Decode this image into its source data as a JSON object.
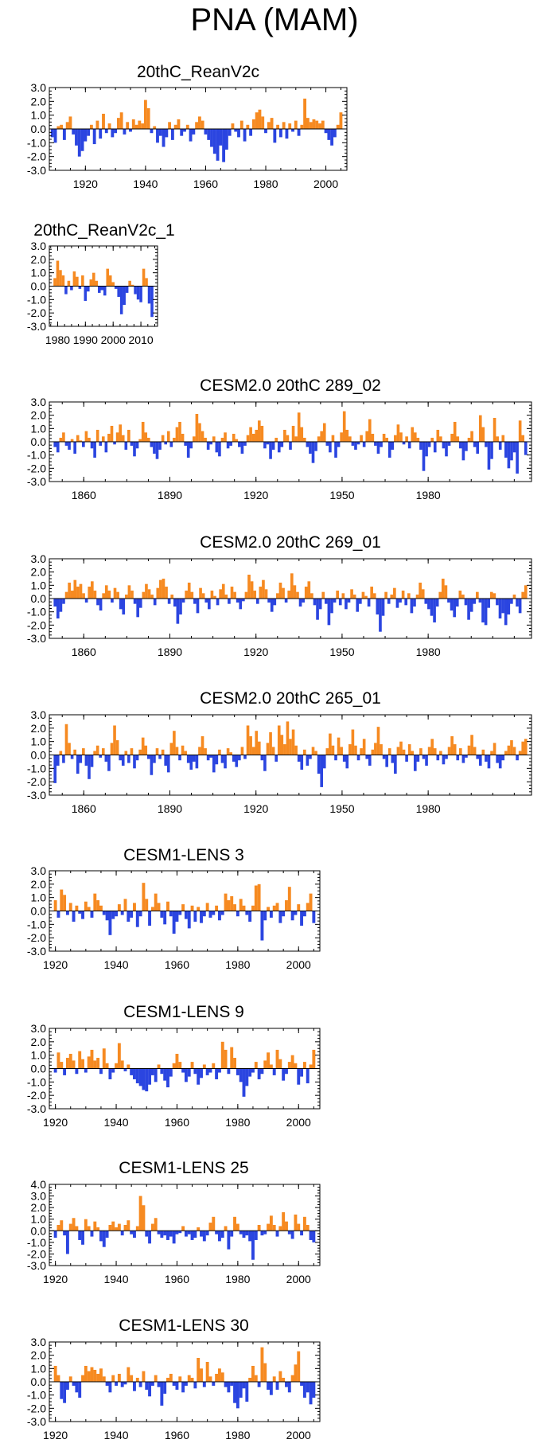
{
  "page": {
    "title": "PNA (MAM)"
  },
  "colors": {
    "positive": "#f68a21",
    "negative": "#2b45e0",
    "axis": "#000000"
  },
  "chart_data": [
    {
      "type": "area",
      "title": "20thC_ReanV2c",
      "x_start": 1909,
      "x_end": 2005,
      "xlim": [
        1908,
        2007
      ],
      "ylim": [
        -3,
        3
      ],
      "yticks": [
        "3.0",
        "2.0",
        "1.0",
        "0.0",
        "-1.0",
        "-2.0",
        "-3.0"
      ],
      "yticks_values": [
        3,
        2,
        1,
        0,
        -1,
        -2,
        -3
      ],
      "xticks": [
        "1920",
        "1940",
        "1960",
        "1980",
        "2000"
      ],
      "xticks_values": [
        1920,
        1940,
        1960,
        1980,
        2000
      ],
      "values": [
        -0.6,
        -1.0,
        0.2,
        0.3,
        -0.8,
        0.5,
        0.9,
        -0.4,
        -1.2,
        -2.0,
        -1.6,
        -0.9,
        -0.5,
        0.3,
        -1.1,
        0.6,
        -0.7,
        1.1,
        -0.3,
        0.4,
        -0.6,
        -0.3,
        0.8,
        1.2,
        -0.4,
        0.5,
        -0.2,
        0.7,
        0.3,
        0.6,
        0.4,
        2.1,
        1.5,
        -0.3,
        0.2,
        -1.0,
        -0.5,
        -1.3,
        -0.6,
        0.5,
        -0.8,
        0.3,
        0.7,
        -0.5,
        -0.2,
        0.3,
        -0.9,
        -0.4,
        0.5,
        0.9,
        0.6,
        -0.4,
        -0.8,
        -1.3,
        -1.8,
        -2.3,
        -1.2,
        -2.4,
        -1.5,
        -0.5,
        0.4,
        -0.2,
        -0.6,
        0.6,
        -0.9,
        0.3,
        -0.5,
        0.7,
        1.2,
        1.4,
        0.9,
        -0.3,
        0.5,
        0.8,
        -1.0,
        0.3,
        -0.6,
        0.5,
        -0.7,
        0.4,
        -0.2,
        0.6,
        -0.5,
        0.3,
        2.2,
        0.8,
        0.5,
        0.7,
        0.6,
        0.4,
        0.6,
        -0.3,
        -0.8,
        -1.2,
        -0.6,
        0.3,
        1.2
      ]
    },
    {
      "type": "area",
      "title": "20thC_ReanV2c_1",
      "x_start": 1979,
      "x_end": 2014,
      "xlim": [
        1977,
        2016
      ],
      "ylim": [
        -3,
        3
      ],
      "yticks": [
        "3.0",
        "2.0",
        "1.0",
        "0.0",
        "-1.0",
        "-2.0",
        "-3.0"
      ],
      "yticks_values": [
        3,
        2,
        1,
        0,
        -1,
        -2,
        -3
      ],
      "xticks": [
        "1980",
        "1990",
        "2000",
        "2010"
      ],
      "xticks_values": [
        1980,
        1990,
        2000,
        2010
      ],
      "values": [
        0.6,
        1.9,
        1.2,
        0.8,
        -0.6,
        0.4,
        -0.3,
        1.1,
        0.7,
        -0.2,
        0.8,
        -1.1,
        -0.4,
        0.5,
        1.0,
        0.4,
        -0.5,
        -0.3,
        -0.7,
        1.3,
        0.8,
        0.3,
        -0.2,
        -0.8,
        -2.1,
        -1.4,
        -0.5,
        0.4,
        0.1,
        -0.6,
        -1.0,
        -1.2,
        1.3,
        0.6,
        -1.3,
        -2.3
      ]
    },
    {
      "type": "area",
      "title": "CESM2.0 20thC 289_02",
      "x_start": 1850,
      "x_end": 2014,
      "xlim": [
        1848,
        2016
      ],
      "ylim": [
        -3,
        3
      ],
      "yticks": [
        "3.0",
        "2.0",
        "1.0",
        "0.0",
        "-1.0",
        "-2.0",
        "-3.0"
      ],
      "yticks_values": [
        3,
        2,
        1,
        0,
        -1,
        -2,
        -3
      ],
      "xticks": [
        "1860",
        "1890",
        "1920",
        "1950",
        "1980"
      ],
      "xticks_values": [
        1860,
        1890,
        1920,
        1950,
        1980
      ],
      "values": [
        -0.4,
        -0.8,
        0.3,
        0.7,
        -0.3,
        -0.6,
        0.2,
        -0.9,
        0.5,
        0.1,
        -0.4,
        0.8,
        0.3,
        -0.5,
        -1.2,
        0.9,
        -0.3,
        0.4,
        -0.8,
        0.6,
        1.2,
        -0.2,
        0.7,
        1.3,
        0.5,
        -0.6,
        0.9,
        -0.3,
        -1.1,
        -0.5,
        0.2,
        1.5,
        0.7,
        0.3,
        -0.4,
        -0.9,
        -1.3,
        -0.6,
        0.5,
        -0.2,
        0.8,
        -0.4,
        0.3,
        1.1,
        1.5,
        0.6,
        -0.3,
        -1.2,
        -0.5,
        0.4,
        2.1,
        1.4,
        0.8,
        0.3,
        -0.6,
        -0.2,
        0.4,
        -0.8,
        -1.1,
        0.3,
        0.7,
        -0.5,
        -0.3,
        0.6,
        0.2,
        -0.4,
        -0.9,
        -0.3,
        0.5,
        1.1,
        0.6,
        0.9,
        1.6,
        1.2,
        -0.5,
        -0.2,
        -1.3,
        -0.6,
        0.3,
        -0.8,
        -0.4,
        0.9,
        0.5,
        -0.6,
        1.2,
        0.4,
        2.2,
        1.1,
        0.3,
        -0.4,
        -0.9,
        -1.6,
        -0.7,
        0.4,
        0.8,
        1.4,
        -0.3,
        -0.8,
        0.5,
        -1.2,
        -0.4,
        0.7,
        2.3,
        0.9,
        0.4,
        -0.3,
        -0.6,
        -0.2,
        0.5,
        -0.4,
        0.8,
        1.7,
        0.6,
        -0.3,
        -0.9,
        -0.4,
        0.6,
        0.3,
        -1.2,
        -0.6,
        0.5,
        1.3,
        0.7,
        -0.2,
        0.4,
        -0.5,
        1.1,
        0.7,
        0.3,
        -0.6,
        -2.2,
        -1.1,
        -0.4,
        0.3,
        -0.8,
        0.9,
        0.4,
        -0.5,
        -1.1,
        -0.3,
        0.6,
        1.5,
        0.4,
        -0.5,
        -1.4,
        -0.7,
        0.3,
        0.8,
        -0.4,
        -0.9,
        2.0,
        1.1,
        -0.4,
        -2.1,
        -1.3,
        1.8,
        0.4,
        -0.6,
        0.5,
        -1.2,
        -2.0,
        -1.4,
        -0.8,
        -2.4,
        1.6,
        0.5,
        -1.0
      ]
    },
    {
      "type": "area",
      "title": "CESM2.0 20thC 269_01",
      "x_start": 1850,
      "x_end": 2014,
      "xlim": [
        1848,
        2016
      ],
      "ylim": [
        -3,
        3
      ],
      "yticks": [
        "3.0",
        "2.0",
        "1.0",
        "0.0",
        "-1.0",
        "-2.0",
        "-3.0"
      ],
      "yticks_values": [
        3,
        2,
        1,
        0,
        -1,
        -2,
        -3
      ],
      "xticks": [
        "1860",
        "1890",
        "1920",
        "1950",
        "1980"
      ],
      "xticks_values": [
        1860,
        1890,
        1920,
        1950,
        1980
      ],
      "values": [
        -0.6,
        -1.5,
        -1.0,
        -0.4,
        0.5,
        1.2,
        0.6,
        1.4,
        0.9,
        1.1,
        0.4,
        -0.3,
        0.9,
        1.3,
        0.6,
        -0.5,
        -0.9,
        0.4,
        1.0,
        0.6,
        -0.3,
        0.8,
        0.5,
        -0.8,
        -1.2,
        0.3,
        1.0,
        0.6,
        -0.4,
        -1.4,
        -0.7,
        0.5,
        1.1,
        0.7,
        0.3,
        -0.5,
        0.8,
        1.4,
        1.5,
        0.9,
        -0.4,
        0.3,
        -0.6,
        -1.9,
        -1.2,
        -0.3,
        0.6,
        1.2,
        0.5,
        -0.4,
        -1.1,
        0.8,
        0.4,
        -0.3,
        -0.8,
        0.6,
        0.2,
        -0.5,
        0.7,
        1.1,
        0.3,
        -0.4,
        0.9,
        0.5,
        -0.3,
        -0.8,
        -0.2,
        0.5,
        1.8,
        1.3,
        0.6,
        -0.4,
        0.9,
        1.4,
        0.7,
        -0.3,
        -1.0,
        -0.5,
        0.4,
        1.2,
        0.8,
        -0.3,
        0.6,
        1.9,
        1.0,
        0.5,
        -0.6,
        -0.3,
        0.9,
        1.3,
        0.4,
        -0.5,
        -1.6,
        -0.8,
        0.5,
        -0.4,
        -2.0,
        -1.1,
        -0.3,
        0.6,
        -0.5,
        0.4,
        -0.8,
        -0.3,
        0.7,
        0.3,
        -1.0,
        -0.4,
        0.5,
        0.2,
        -0.6,
        0.9,
        0.4,
        -1.2,
        -2.5,
        -1.3,
        0.5,
        -0.4,
        0.3,
        0.8,
        -0.7,
        -0.3,
        0.6,
        -0.5,
        0.4,
        -1.1,
        -0.6,
        0.3,
        1.2,
        0.7,
        -0.4,
        -0.8,
        -1.3,
        -1.8,
        -0.6,
        0.5,
        1.5,
        1.0,
        -0.3,
        -0.9,
        -1.4,
        -0.6,
        0.6,
        0.3,
        -0.5,
        -1.6,
        -1.0,
        -0.4,
        0.5,
        -0.3,
        -1.8,
        -2.0,
        -0.7,
        0.5,
        0.4,
        -0.5,
        -1.5,
        -1.1,
        -2.0,
        -1.2,
        -0.4,
        0.3,
        -0.6,
        -1.1,
        0.5,
        1.0
      ]
    },
    {
      "type": "area",
      "title": "CESM2.0 20thC 265_01",
      "x_start": 1850,
      "x_end": 2014,
      "xlim": [
        1848,
        2016
      ],
      "ylim": [
        -3,
        3
      ],
      "yticks": [
        "3.0",
        "2.0",
        "1.0",
        "0.0",
        "-1.0",
        "-2.0",
        "-3.0"
      ],
      "yticks_values": [
        3,
        2,
        1,
        0,
        -1,
        -2,
        -3
      ],
      "xticks": [
        "1860",
        "1890",
        "1920",
        "1950",
        "1980"
      ],
      "xticks_values": [
        1860,
        1890,
        1920,
        1950,
        1980
      ],
      "values": [
        -2.1,
        -0.8,
        0.3,
        -0.6,
        2.3,
        0.9,
        -0.3,
        0.4,
        -1.4,
        -0.6,
        0.5,
        -0.8,
        -1.8,
        -0.9,
        0.3,
        0.7,
        -0.2,
        0.5,
        -0.5,
        -1.2,
        0.9,
        2.2,
        1.1,
        -0.4,
        -0.8,
        0.3,
        -0.6,
        0.5,
        -1.0,
        -0.4,
        0.4,
        1.3,
        0.7,
        -0.3,
        -1.5,
        -0.6,
        0.5,
        -0.3,
        0.4,
        -0.8,
        -1.3,
        0.9,
        1.8,
        0.6,
        -0.4,
        0.7,
        0.3,
        -0.6,
        -1.1,
        -0.5,
        -1.0,
        0.6,
        1.4,
        0.5,
        -0.4,
        -0.2,
        -1.3,
        -0.7,
        0.4,
        -0.6,
        -1.0,
        0.5,
        0.2,
        -0.5,
        -0.9,
        -0.4,
        0.6,
        -0.3,
        2.2,
        1.4,
        0.6,
        1.8,
        1.0,
        -0.4,
        -1.2,
        0.9,
        1.7,
        0.6,
        -0.5,
        2.2,
        1.5,
        0.8,
        2.5,
        1.2,
        1.9,
        0.7,
        -0.5,
        -1.1,
        0.4,
        -0.8,
        -0.3,
        0.6,
        0.3,
        -1.4,
        -2.4,
        -1.0,
        0.5,
        1.6,
        0.7,
        -0.4,
        1.3,
        0.6,
        -0.5,
        -1.0,
        0.8,
        1.9,
        0.7,
        -0.4,
        0.5,
        1.2,
        -0.3,
        -0.8,
        0.4,
        0.9,
        2.1,
        0.8,
        -0.3,
        -0.9,
        0.5,
        -0.6,
        -1.4,
        0.6,
        1.0,
        0.4,
        -0.5,
        0.8,
        0.3,
        -1.2,
        -0.5,
        0.5,
        -0.3,
        -0.8,
        0.6,
        1.2,
        0.5,
        -0.4,
        0.3,
        -0.7,
        -0.3,
        0.6,
        1.4,
        0.8,
        -0.4,
        0.5,
        -0.6,
        -0.2,
        0.7,
        1.5,
        0.6,
        -0.3,
        -0.8,
        0.4,
        -0.5,
        -1.0,
        0.3,
        0.9,
        -0.6,
        -1.0,
        -0.4,
        0.3,
        0.7,
        1.1,
        0.6,
        -0.4,
        0.3,
        1.0,
        1.2
      ]
    },
    {
      "type": "area",
      "title": "CESM1-LENS 3",
      "x_start": 1920,
      "x_end": 2005,
      "xlim": [
        1918,
        2007
      ],
      "ylim": [
        -3,
        3
      ],
      "yticks": [
        "3.0",
        "2.0",
        "1.0",
        "0.0",
        "-1.0",
        "-2.0",
        "-3.0"
      ],
      "yticks_values": [
        3,
        2,
        1,
        0,
        -1,
        -2,
        -3
      ],
      "xticks": [
        "1920",
        "1940",
        "1960",
        "1980",
        "2000"
      ],
      "xticks_values": [
        1920,
        1940,
        1960,
        1980,
        2000
      ],
      "values": [
        0.8,
        -0.5,
        1.6,
        1.2,
        -0.3,
        0.6,
        -0.8,
        0.4,
        -0.2,
        -0.6,
        0.7,
        0.3,
        -0.5,
        1.3,
        0.8,
        0.4,
        -0.3,
        -0.7,
        -1.8,
        -0.6,
        -0.4,
        0.5,
        -0.3,
        0.9,
        -0.8,
        -0.5,
        0.6,
        -1.2,
        -0.4,
        2.1,
        0.9,
        -1.1,
        0.3,
        1.3,
        0.6,
        -0.5,
        -1.0,
        0.7,
        -0.4,
        -1.7,
        -0.8,
        -0.3,
        0.5,
        -0.6,
        -1.3,
        0.4,
        -0.8,
        0.3,
        -0.9,
        -0.4,
        0.6,
        -0.5,
        -0.3,
        0.4,
        -0.7,
        -0.3,
        1.3,
        0.8,
        1.1,
        0.5,
        -0.4,
        0.9,
        0.4,
        -0.3,
        -0.8,
        0.4,
        1.9,
        2.0,
        -2.2,
        -0.7,
        0.3,
        -0.5,
        0.4,
        0.6,
        -0.9,
        -0.4,
        0.8,
        1.8,
        -0.7,
        -0.3,
        0.5,
        -1.1,
        -0.4,
        0.6,
        1.3,
        -0.9
      ]
    },
    {
      "type": "area",
      "title": "CESM1-LENS 9",
      "x_start": 1920,
      "x_end": 2005,
      "xlim": [
        1918,
        2007
      ],
      "ylim": [
        -3,
        3
      ],
      "yticks": [
        "3.0",
        "2.0",
        "1.0",
        "0.0",
        "-1.0",
        "-2.0",
        "-3.0"
      ],
      "yticks_values": [
        3,
        2,
        1,
        0,
        -1,
        -2,
        -3
      ],
      "xticks": [
        "1920",
        "1940",
        "1960",
        "1980",
        "2000"
      ],
      "xticks_values": [
        1920,
        1940,
        1960,
        1980,
        2000
      ],
      "values": [
        -0.3,
        1.2,
        0.5,
        -0.5,
        0.8,
        1.1,
        0.6,
        -0.4,
        1.3,
        0.7,
        -0.3,
        0.9,
        1.4,
        0.6,
        0.8,
        -0.4,
        1.5,
        0.4,
        -0.8,
        -0.3,
        0.4,
        1.9,
        0.6,
        -0.2,
        0.3,
        -0.5,
        -0.8,
        -1.1,
        -1.3,
        -1.6,
        -1.7,
        -1.2,
        -0.5,
        -1.0,
        0.3,
        -0.4,
        -0.9,
        -1.4,
        -0.6,
        0.4,
        1.1,
        0.5,
        -0.3,
        -1.0,
        -0.6,
        0.5,
        -0.4,
        -1.2,
        -0.7,
        0.3,
        -0.5,
        -0.3,
        0.4,
        -0.8,
        -0.3,
        2.0,
        1.4,
        -0.4,
        1.6,
        0.8,
        -0.5,
        -1.0,
        -2.1,
        -1.3,
        -0.6,
        -0.3,
        0.5,
        -0.8,
        -0.4,
        0.6,
        1.2,
        0.3,
        -0.5,
        1.4,
        0.7,
        -0.9,
        -0.4,
        0.5,
        1.0,
        0.4,
        -1.2,
        -0.6,
        0.5,
        -1.1,
        0.3,
        1.4
      ]
    },
    {
      "type": "area",
      "title": "CESM1-LENS 25",
      "x_start": 1920,
      "x_end": 2005,
      "xlim": [
        1918,
        2007
      ],
      "ylim": [
        -3,
        4
      ],
      "yticks": [
        "4.0",
        "3.0",
        "2.0",
        "1.0",
        "0.0",
        "-1.0",
        "-2.0",
        "-3.0"
      ],
      "yticks_values": [
        4,
        3,
        2,
        1,
        0,
        -1,
        -2,
        -3
      ],
      "xticks": [
        "1920",
        "1940",
        "1960",
        "1980",
        "2000"
      ],
      "xticks_values": [
        1920,
        1940,
        1960,
        1980,
        2000
      ],
      "values": [
        -0.6,
        0.5,
        0.9,
        -0.4,
        -2.0,
        0.6,
        1.1,
        0.4,
        -0.8,
        -1.2,
        1.0,
        0.4,
        -0.5,
        0.8,
        0.3,
        -0.9,
        -1.4,
        -0.6,
        0.5,
        0.8,
        0.3,
        0.6,
        -0.4,
        0.5,
        0.9,
        -0.3,
        -0.6,
        0.4,
        3.0,
        2.2,
        -0.5,
        -1.1,
        0.6,
        1.1,
        -0.3,
        -0.6,
        -0.4,
        -0.8,
        -0.5,
        -1.1,
        -0.3,
        -0.2,
        0.4,
        -0.5,
        -0.3,
        -0.8,
        -0.6,
        0.3,
        -0.5,
        -0.9,
        -0.4,
        0.7,
        1.2,
        -0.3,
        -0.9,
        -0.6,
        0.4,
        -1.6,
        -0.5,
        1.2,
        0.6,
        -0.3,
        -0.6,
        -0.4,
        -0.9,
        -2.5,
        -0.8,
        0.5,
        -0.4,
        -0.3,
        0.6,
        1.3,
        0.5,
        -0.5,
        0.4,
        1.6,
        0.8,
        -0.3,
        -0.7,
        1.4,
        0.6,
        -0.4,
        1.2,
        0.5,
        -0.8,
        -1.0
      ]
    },
    {
      "type": "area",
      "title": "CESM1-LENS 30",
      "x_start": 1920,
      "x_end": 2005,
      "xlim": [
        1918,
        2007
      ],
      "ylim": [
        -3,
        3
      ],
      "yticks": [
        "3.0",
        "2.0",
        "1.0",
        "0.0",
        "-1.0",
        "-2.0",
        "-3.0"
      ],
      "yticks_values": [
        3,
        2,
        1,
        0,
        -1,
        -2,
        -3
      ],
      "xticks": [
        "1920",
        "1940",
        "1960",
        "1980",
        "2000"
      ],
      "xticks_values": [
        1920,
        1940,
        1960,
        1980,
        2000
      ],
      "values": [
        1.2,
        0.5,
        -1.3,
        -1.6,
        -0.6,
        0.4,
        -0.3,
        -0.8,
        -1.2,
        0.5,
        1.2,
        0.8,
        1.1,
        0.9,
        0.6,
        1.0,
        0.4,
        -0.3,
        -0.8,
        0.5,
        -0.3,
        0.6,
        -0.4,
        -0.2,
        1.1,
        0.5,
        -0.7,
        0.3,
        -0.4,
        0.8,
        -0.6,
        -1.1,
        -0.3,
        0.5,
        -0.4,
        -1.8,
        -0.9,
        0.3,
        0.6,
        -0.3,
        -0.6,
        0.4,
        -0.8,
        -0.3,
        0.5,
        0.3,
        -0.5,
        1.8,
        1.0,
        -0.4,
        1.5,
        0.4,
        -0.3,
        0.6,
        1.0,
        0.7,
        -0.4,
        -0.8,
        -0.3,
        -1.6,
        -2.0,
        -1.2,
        -0.5,
        -1.5,
        0.3,
        1.2,
        0.5,
        -0.4,
        2.6,
        1.4,
        -0.6,
        -1.0,
        0.4,
        -0.6,
        0.8,
        0.3,
        -0.4,
        -0.8,
        0.5,
        1.3,
        2.3,
        -0.3,
        -1.2,
        -0.8,
        -1.7,
        -1.2
      ]
    }
  ]
}
